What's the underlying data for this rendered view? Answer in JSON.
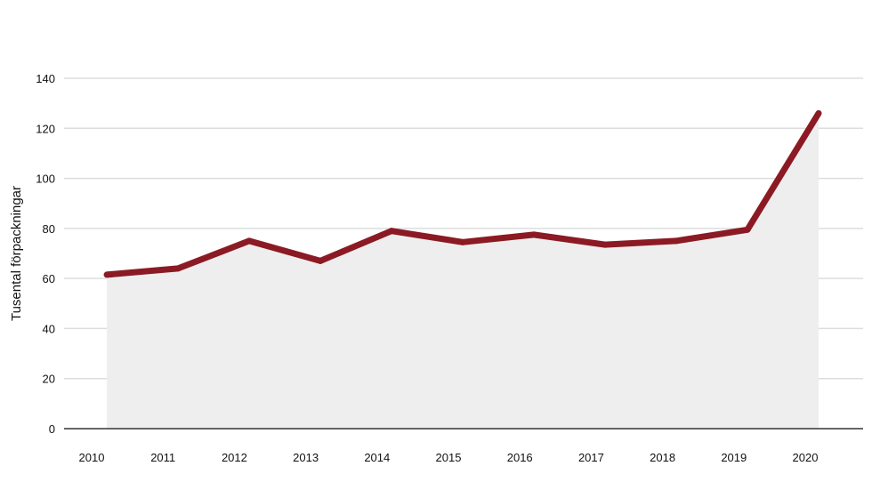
{
  "chart_data": {
    "type": "area",
    "title": "",
    "xlabel": "",
    "ylabel": "Tusental förpackningar",
    "x": [
      "2010",
      "2011",
      "2012",
      "2013",
      "2014",
      "2015",
      "2016",
      "2017",
      "2018",
      "2019",
      "2020"
    ],
    "series": [
      {
        "values": [
          61.5,
          64,
          75,
          67,
          79,
          74.5,
          77.5,
          73.5,
          75,
          79.5,
          126
        ]
      }
    ],
    "yticks": [
      "0",
      "20",
      "40",
      "60",
      "80",
      "100",
      "120",
      "140"
    ],
    "ylim": [
      0,
      140
    ],
    "grid": true,
    "legend": "none",
    "colors": {
      "line": "#8b1a24",
      "fill": "#eeeeee",
      "grid": "#dddddd",
      "axis": "#333333"
    }
  }
}
